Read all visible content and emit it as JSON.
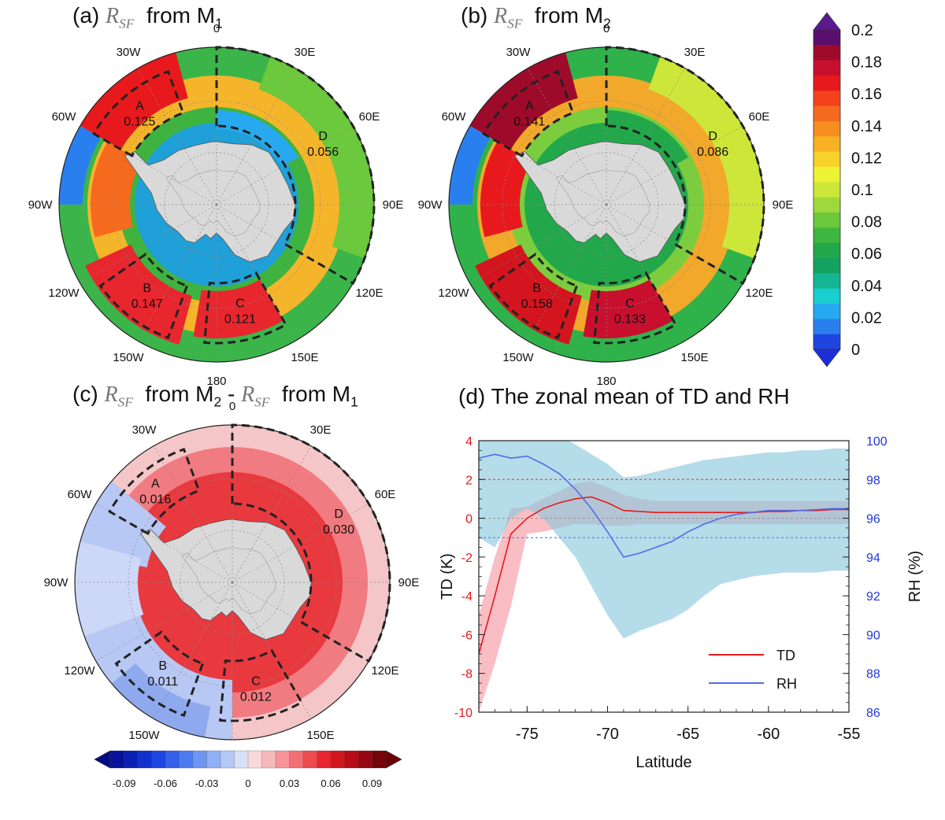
{
  "panels": {
    "a": {
      "prefix": "(a)",
      "suffix": "from M",
      "sub": "1"
    },
    "b": {
      "prefix": "(b)",
      "suffix": "from M",
      "sub": "2"
    },
    "c": {
      "prefix": "(c)",
      "mid": "from M",
      "mid_sub": "2",
      "dash": " - ",
      "suffix": "from M",
      "sub": "1"
    },
    "d": {
      "title": "(d) The zonal mean of TD and RH"
    },
    "symbol": "R",
    "symbol_sub": "SF"
  },
  "longitude_labels": [
    "0",
    "30E",
    "60E",
    "90E",
    "120E",
    "150E",
    "180",
    "150W",
    "120W",
    "90W",
    "60W",
    "30W"
  ],
  "maps": [
    {
      "id": "a",
      "regions": [
        {
          "name": "A",
          "value": "0.125"
        },
        {
          "name": "B",
          "value": "0.147"
        },
        {
          "name": "C",
          "value": "0.121"
        },
        {
          "name": "D",
          "value": "0.056"
        }
      ]
    },
    {
      "id": "b",
      "regions": [
        {
          "name": "A",
          "value": "0.141"
        },
        {
          "name": "B",
          "value": "0.158"
        },
        {
          "name": "C",
          "value": "0.133"
        },
        {
          "name": "D",
          "value": "0.086"
        }
      ]
    },
    {
      "id": "c",
      "regions": [
        {
          "name": "A",
          "value": "0.016"
        },
        {
          "name": "B",
          "value": "0.011"
        },
        {
          "name": "C",
          "value": "0.012"
        },
        {
          "name": "D",
          "value": "0.030"
        }
      ]
    }
  ],
  "colorbar_main": {
    "labels": [
      "0.2",
      "0.18",
      "0.16",
      "0.14",
      "0.12",
      "0.1",
      "0.08",
      "0.06",
      "0.04",
      "0.02",
      "0"
    ],
    "colors_top_to_bottom": [
      "#5a0f6e",
      "#9e0b2a",
      "#c8102e",
      "#e8191c",
      "#f5421d",
      "#f66a1e",
      "#f78f20",
      "#f8b124",
      "#f7d22a",
      "#eef234",
      "#cde63a",
      "#9fd83c",
      "#6cc83c",
      "#3fb63f",
      "#22a84a",
      "#13a25f",
      "#14b693",
      "#19cfd0",
      "#27a9ef",
      "#2a7fef",
      "#1f44e0"
    ],
    "over_color": "#5a1a8c",
    "under_color": "#1c2fd6"
  },
  "colorbar_diff": {
    "labels": [
      "-0.09",
      "-0.06",
      "-0.03",
      "0",
      "0.03",
      "0.06",
      "0.09"
    ],
    "colors": [
      "#08119a",
      "#0a1fb5",
      "#1031cc",
      "#1e46e0",
      "#3460ea",
      "#4f7bf0",
      "#6e95f2",
      "#90b0f5",
      "#b3c8f7",
      "#d8e0f8",
      "#f8d8d8",
      "#f7b8bb",
      "#f59398",
      "#f27075",
      "#ee4a50",
      "#e8262e",
      "#d4141e",
      "#b80b17",
      "#960611",
      "#75030b"
    ],
    "under_color": "#030a85",
    "over_color": "#6b0208"
  },
  "chart_data": {
    "type": "line",
    "title": "(d) The zonal mean of TD and RH",
    "xlabel": "Latitude",
    "ylabel": "TD (K)",
    "y2label": "RH (%)",
    "xlim": [
      -78,
      -55
    ],
    "xticks": [
      "-75",
      "-70",
      "-65",
      "-60",
      "-55"
    ],
    "ylim": [
      -10,
      4
    ],
    "yticks": [
      "-10",
      "-8",
      "-6",
      "-4",
      "-2",
      "0",
      "2",
      "4"
    ],
    "y2lim": [
      86,
      100
    ],
    "y2ticks": [
      "86",
      "88",
      "90",
      "92",
      "94",
      "96",
      "98",
      "100"
    ],
    "reference_lines": [
      {
        "axis": "TD",
        "value": 2,
        "color": "#e05252"
      },
      {
        "axis": "TD",
        "value": 0,
        "color": "#999999"
      },
      {
        "axis": "RH",
        "value": 95,
        "color": "#6b7fe8"
      }
    ],
    "series": [
      {
        "name": "TD",
        "axis": "left",
        "color": "#e41a1c",
        "x": [
          -78,
          -77,
          -76,
          -75,
          -74,
          -73,
          -72,
          -71,
          -70,
          -69,
          -68,
          -67,
          -66,
          -65,
          -64,
          -63,
          -62,
          -61,
          -60,
          -59,
          -58,
          -57,
          -56,
          -55
        ],
        "y": [
          -7.0,
          -4.0,
          -0.8,
          0.0,
          0.5,
          0.8,
          1.0,
          1.1,
          0.8,
          0.4,
          0.35,
          0.3,
          0.3,
          0.3,
          0.3,
          0.3,
          0.3,
          0.3,
          0.35,
          0.35,
          0.4,
          0.4,
          0.45,
          0.45
        ],
        "band_low": [
          -10.0,
          -7.5,
          -4.5,
          -0.8,
          -0.7,
          -0.5,
          -0.3,
          -0.3,
          -0.4,
          -0.4,
          -0.3,
          -0.3,
          -0.3,
          -0.3,
          -0.3,
          -0.3,
          -0.3,
          -0.3,
          -0.3,
          -0.3,
          -0.3,
          -0.3,
          -0.3,
          -0.3
        ],
        "band_high": [
          -5.0,
          -2.0,
          0.5,
          0.6,
          1.0,
          1.4,
          1.8,
          1.9,
          1.6,
          1.2,
          1.0,
          0.9,
          0.9,
          0.9,
          0.9,
          0.9,
          0.9,
          0.9,
          0.9,
          0.9,
          0.9,
          0.9,
          0.9,
          0.9
        ]
      },
      {
        "name": "RH",
        "axis": "right",
        "color": "#4f6fe8",
        "x": [
          -78,
          -77,
          -76,
          -75,
          -74,
          -73,
          -72,
          -71,
          -70,
          -69,
          -68,
          -67,
          -66,
          -65,
          -64,
          -63,
          -62,
          -61,
          -60,
          -59,
          -58,
          -57,
          -56,
          -55
        ],
        "y": [
          99.1,
          99.3,
          99.1,
          99.2,
          98.8,
          98.3,
          97.5,
          96.5,
          95.3,
          94.0,
          94.2,
          94.5,
          94.8,
          95.3,
          95.7,
          96.0,
          96.2,
          96.3,
          96.4,
          96.4,
          96.4,
          96.45,
          96.5,
          96.5
        ],
        "band_low": [
          95.0,
          94.5,
          96.0,
          96.5,
          96.0,
          95.0,
          94.0,
          92.5,
          91.0,
          89.8,
          90.2,
          90.5,
          90.8,
          91.3,
          92.0,
          92.6,
          92.8,
          93.0,
          93.1,
          93.2,
          93.2,
          93.2,
          93.3,
          93.3
        ],
        "band_high": [
          100.5,
          100.5,
          100.5,
          100.5,
          100.5,
          100.3,
          99.8,
          99.3,
          98.8,
          98.1,
          98.2,
          98.4,
          98.6,
          98.8,
          99.0,
          99.1,
          99.2,
          99.3,
          99.4,
          99.4,
          99.5,
          99.5,
          99.6,
          99.6
        ]
      }
    ],
    "legend": {
      "entries": [
        "TD",
        "RH"
      ],
      "position": "bottom-right"
    }
  }
}
